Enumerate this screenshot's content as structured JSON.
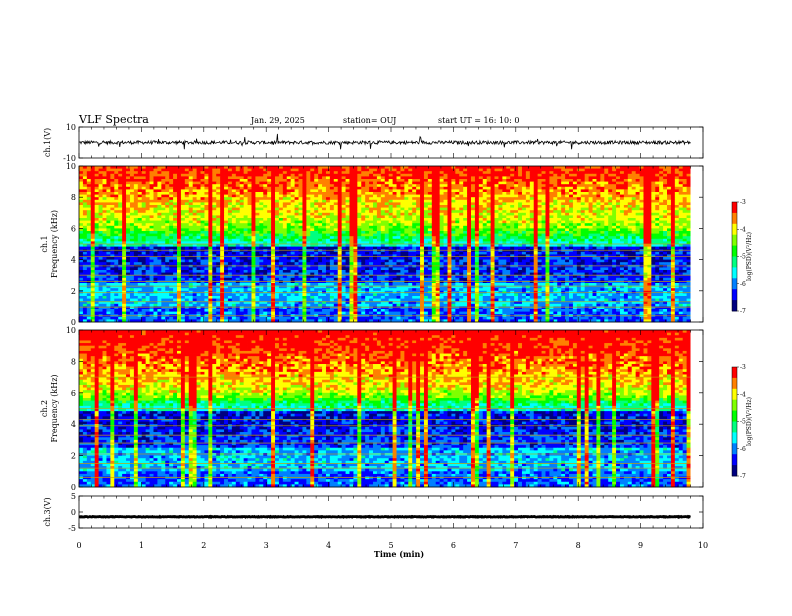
{
  "header": {
    "title": "VLF Spectra",
    "date": "Jan. 29, 2025",
    "station": "station= OUJ",
    "start": "start  UT =   16: 10: 0"
  },
  "chart_data": [
    {
      "type": "line",
      "name": "ch1-waveform",
      "ylabel": "ch.1(V)",
      "ylim": [
        -10,
        10
      ],
      "yticks": [
        "10",
        "-10"
      ],
      "xlim": [
        0,
        10
      ],
      "baseline": 0,
      "color": "#000000"
    },
    {
      "type": "heatmap",
      "name": "ch1-spectrogram",
      "ylabel": "ch.1\nFrequency (kHz)",
      "xlim": [
        0,
        10
      ],
      "ylim": [
        0,
        10
      ],
      "yticks": [
        "0",
        "2",
        "4",
        "6",
        "8",
        "10"
      ],
      "data_xmax": 9.8,
      "colorbar": {
        "label": "log(PSD)(V²/Hz)",
        "ticks": [
          "-3",
          "-4",
          "-5",
          "-6",
          "-7"
        ],
        "range": [
          -7,
          -3
        ]
      }
    },
    {
      "type": "heatmap",
      "name": "ch2-spectrogram",
      "ylabel": "ch.2\nFrequency (kHz)",
      "xlim": [
        0,
        10
      ],
      "ylim": [
        0,
        10
      ],
      "yticks": [
        "0",
        "2",
        "4",
        "6",
        "8",
        "10"
      ],
      "data_xmax": 9.8,
      "colorbar": {
        "label": "log(PSD)(V²/Hz)",
        "ticks": [
          "-3",
          "-4",
          "-5",
          "-6",
          "-7"
        ],
        "range": [
          -7,
          -3
        ]
      }
    },
    {
      "type": "line",
      "name": "ch3-waveform",
      "ylabel": "ch.3(V)",
      "ylim": [
        -5,
        5
      ],
      "yticks": [
        "5",
        "0",
        "-5"
      ],
      "xlim": [
        0,
        10
      ],
      "baseline": -1.5,
      "color": "#000000"
    }
  ],
  "xaxis": {
    "label": "Time (min)",
    "ticks": [
      "0",
      "1",
      "2",
      "3",
      "4",
      "5",
      "6",
      "7",
      "8",
      "9",
      "10"
    ]
  },
  "colormap": [
    "#000080",
    "#0000ff",
    "#0080ff",
    "#00ffff",
    "#00ff80",
    "#00ff00",
    "#80ff00",
    "#ffff00",
    "#ff8000",
    "#ff0000"
  ]
}
